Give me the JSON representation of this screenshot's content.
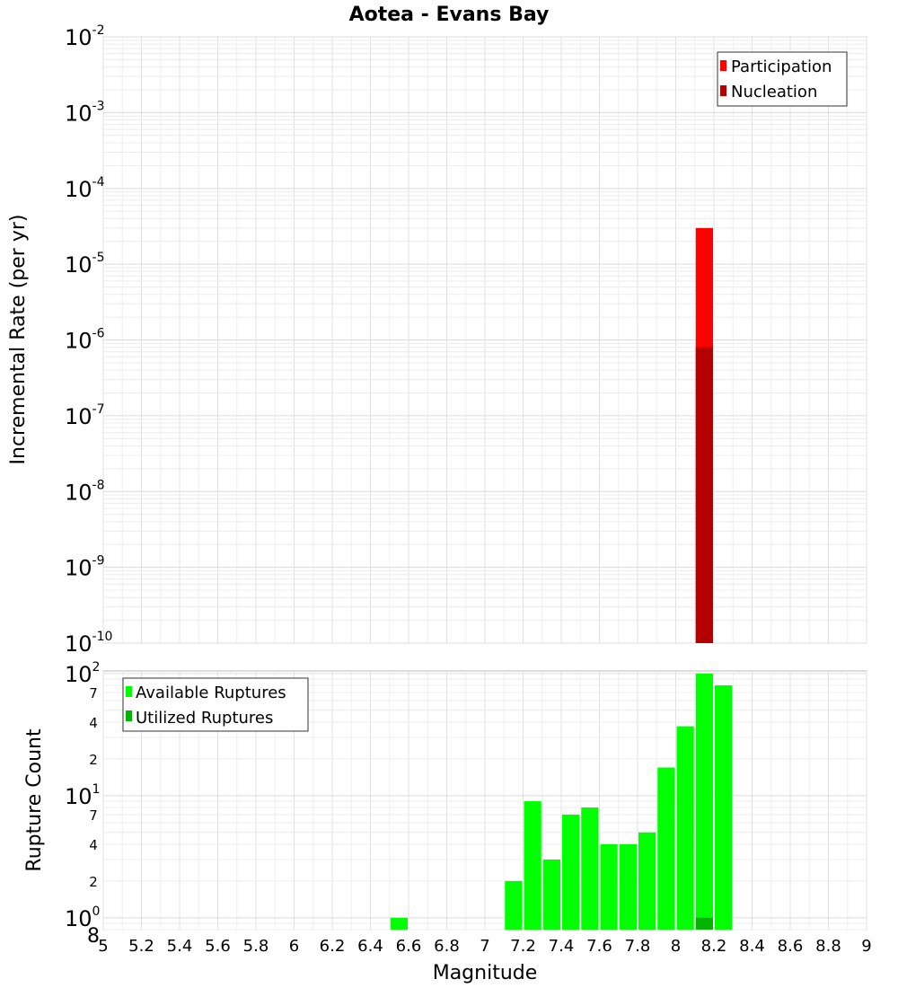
{
  "chart_data": [
    {
      "type": "bar",
      "title": "Aotea - Evans Bay",
      "xlabel": "Magnitude",
      "ylabel": "Incremental Rate (per yr)",
      "yscale": "log",
      "xlim": [
        5,
        9
      ],
      "ylim": [
        1e-10,
        0.01
      ],
      "grid": true,
      "legend_position": "top-right",
      "y_decade_labels": [
        {
          "base": "10",
          "exp": "-10",
          "value": 1e-10
        },
        {
          "base": "10",
          "exp": "-9",
          "value": 1e-09
        },
        {
          "base": "10",
          "exp": "-8",
          "value": 1e-08
        },
        {
          "base": "10",
          "exp": "-7",
          "value": 1e-07
        },
        {
          "base": "10",
          "exp": "-6",
          "value": 1e-06
        },
        {
          "base": "10",
          "exp": "-5",
          "value": 1e-05
        },
        {
          "base": "10",
          "exp": "-4",
          "value": 0.0001
        },
        {
          "base": "10",
          "exp": "-3",
          "value": 0.001
        },
        {
          "base": "10",
          "exp": "-2",
          "value": 0.01
        }
      ],
      "series": [
        {
          "name": "Participation",
          "color": "#ff0000",
          "bars": [
            {
              "x": 8.15,
              "value": 3e-05
            }
          ]
        },
        {
          "name": "Nucleation",
          "color": "#b40000",
          "bars": [
            {
              "x": 8.15,
              "value": 8e-07
            }
          ]
        }
      ]
    },
    {
      "type": "bar",
      "title": "",
      "xlabel": "Magnitude",
      "ylabel": "Rupture Count",
      "yscale": "log",
      "xlim": [
        5,
        9
      ],
      "ylim": [
        0.8,
        105
      ],
      "grid": true,
      "legend_position": "top-left",
      "x_ticks": [
        "5",
        "5.2",
        "5.4",
        "5.6",
        "5.8",
        "6",
        "6.2",
        "6.4",
        "6.6",
        "6.8",
        "7",
        "7.2",
        "7.4",
        "7.6",
        "7.8",
        "8",
        "8.2",
        "8.4",
        "8.6",
        "8.8",
        "9"
      ],
      "y_decade_labels": [
        {
          "base": "10",
          "exp": "0",
          "value": 1
        },
        {
          "base": "10",
          "exp": "1",
          "value": 10
        },
        {
          "base": "10",
          "exp": "2",
          "value": 100
        }
      ],
      "y_minor_labels": [
        {
          "label": "8",
          "value": 0.8
        },
        {
          "label": "2",
          "value": 2
        },
        {
          "label": "4",
          "value": 4
        },
        {
          "label": "7",
          "value": 7
        },
        {
          "label": "2",
          "value": 20
        },
        {
          "label": "4",
          "value": 40
        },
        {
          "label": "7",
          "value": 70
        }
      ],
      "series": [
        {
          "name": "Available Ruptures",
          "color": "#00ff00",
          "bars": [
            {
              "x": 6.55,
              "value": 1
            },
            {
              "x": 7.15,
              "value": 2
            },
            {
              "x": 7.25,
              "value": 9
            },
            {
              "x": 7.35,
              "value": 3
            },
            {
              "x": 7.45,
              "value": 7
            },
            {
              "x": 7.55,
              "value": 8
            },
            {
              "x": 7.65,
              "value": 4
            },
            {
              "x": 7.75,
              "value": 4
            },
            {
              "x": 7.85,
              "value": 5
            },
            {
              "x": 7.95,
              "value": 17
            },
            {
              "x": 8.05,
              "value": 37
            },
            {
              "x": 8.15,
              "value": 100
            },
            {
              "x": 8.25,
              "value": 80
            }
          ]
        },
        {
          "name": "Utilized Ruptures",
          "color": "#00b400",
          "bars": [
            {
              "x": 8.15,
              "value": 1
            }
          ]
        }
      ]
    }
  ]
}
